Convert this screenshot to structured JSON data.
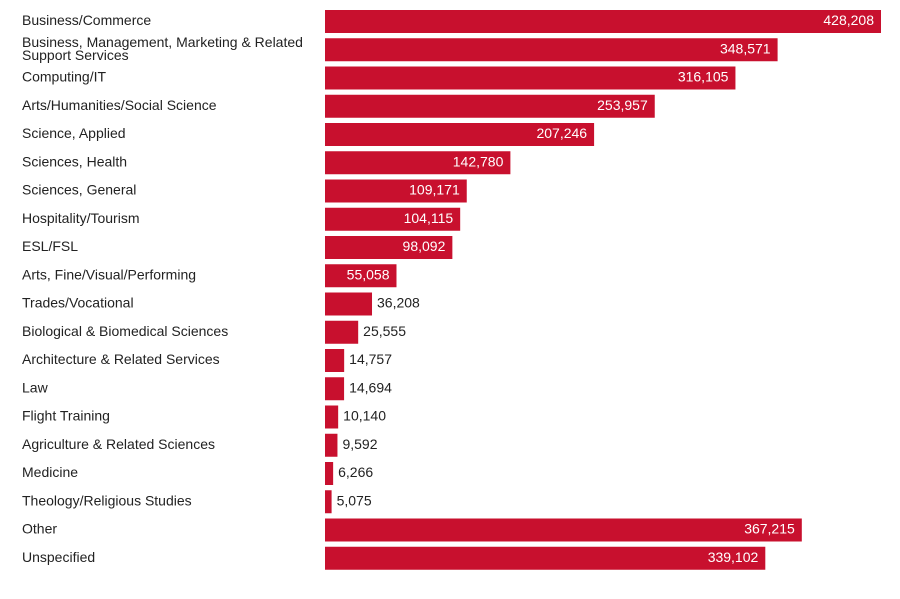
{
  "chart_data": {
    "type": "bar",
    "orientation": "horizontal",
    "title": "",
    "xlabel": "",
    "ylabel": "",
    "xlim": [
      0,
      428208
    ],
    "grid": false,
    "legend": "none",
    "bar_color": "#c8102e",
    "inside_label_color": "#ffffff",
    "outside_label_color": "#222222",
    "categories": [
      [
        "Business/Commerce"
      ],
      [
        "Business, Management, Marketing & Related",
        "Support Services"
      ],
      [
        "Computing/IT"
      ],
      [
        "Arts/Humanities/Social Science"
      ],
      [
        "Science, Applied"
      ],
      [
        "Sciences, Health"
      ],
      [
        "Sciences, General"
      ],
      [
        "Hospitality/Tourism"
      ],
      [
        "ESL/FSL"
      ],
      [
        "Arts, Fine/Visual/Performing"
      ],
      [
        "Trades/Vocational"
      ],
      [
        "Biological & Biomedical Sciences"
      ],
      [
        "Architecture & Related Services"
      ],
      [
        "Law"
      ],
      [
        "Flight Training"
      ],
      [
        "Agriculture & Related Sciences"
      ],
      [
        "Medicine"
      ],
      [
        "Theology/Religious Studies"
      ],
      [
        "Other"
      ],
      [
        "Unspecified"
      ]
    ],
    "values": [
      428208,
      348571,
      316105,
      253957,
      207246,
      142780,
      109171,
      104115,
      98092,
      55058,
      36208,
      25555,
      14757,
      14694,
      10140,
      9592,
      6266,
      5075,
      367215,
      339102
    ],
    "value_labels": [
      "428,208",
      "348,571",
      "316,105",
      "253,957",
      "207,246",
      "142,780",
      "109,171",
      "104,115",
      "98,092",
      "55,058",
      "36,208",
      "25,555",
      "14,757",
      "14,694",
      "10,140",
      "9,592",
      "6,266",
      "5,075",
      "367,215",
      "339,102"
    ]
  }
}
